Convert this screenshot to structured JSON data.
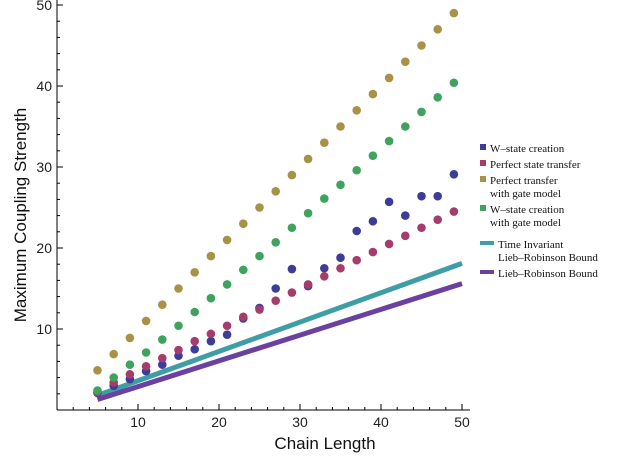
{
  "chart_data": {
    "type": "scatter",
    "xlabel": "Chain Length",
    "ylabel": "Maximum Coupling Strength",
    "xlim": [
      0,
      50
    ],
    "ylim": [
      0,
      50
    ],
    "xticks": [
      10,
      20,
      30,
      40,
      50
    ],
    "yticks": [
      10,
      20,
      30,
      40,
      50
    ],
    "grid": false,
    "legend_position": "right",
    "series": [
      {
        "name": "W–state creation",
        "kind": "points",
        "color": "#3c3c99",
        "x": [
          5,
          7,
          9,
          11,
          13,
          15,
          17,
          19,
          21,
          23,
          25,
          27,
          29,
          31,
          33,
          35,
          37,
          39,
          41,
          43,
          45,
          47,
          49
        ],
        "y": [
          2.1,
          3.0,
          3.8,
          4.8,
          5.6,
          6.7,
          7.5,
          8.5,
          9.3,
          11.3,
          12.6,
          15.0,
          17.4,
          15.3,
          17.5,
          18.8,
          22.1,
          23.3,
          25.7,
          24.0,
          26.4,
          26.4,
          29.1
        ]
      },
      {
        "name": "Perfect state transfer",
        "kind": "points",
        "color": "#a63c6c",
        "x": [
          5,
          7,
          9,
          11,
          13,
          15,
          17,
          19,
          21,
          23,
          25,
          27,
          29,
          31,
          33,
          35,
          37,
          39,
          41,
          43,
          45,
          47,
          49
        ],
        "y": [
          2.2,
          3.4,
          4.4,
          5.4,
          6.4,
          7.4,
          8.5,
          9.4,
          10.4,
          11.5,
          12.4,
          13.5,
          14.5,
          15.5,
          16.5,
          17.5,
          18.5,
          19.5,
          20.5,
          21.5,
          22.5,
          23.5,
          24.5
        ]
      },
      {
        "name": "Perfect transfer\nwith gate model",
        "kind": "points",
        "color": "#a99246",
        "x": [
          5,
          7,
          9,
          11,
          13,
          15,
          17,
          19,
          21,
          23,
          25,
          27,
          29,
          31,
          33,
          35,
          37,
          39,
          41,
          43,
          45,
          47,
          49
        ],
        "y": [
          4.9,
          6.9,
          8.9,
          11.0,
          13.0,
          15.0,
          17.0,
          19.0,
          21.0,
          23.0,
          25.0,
          27.0,
          29.0,
          31.0,
          33.0,
          35.0,
          37.0,
          39.0,
          41.0,
          43.0,
          45.0,
          47.0,
          49.0
        ]
      },
      {
        "name": "W–state creation\nwith gate model",
        "kind": "points",
        "color": "#3fa35e",
        "x": [
          5,
          7,
          9,
          11,
          13,
          15,
          17,
          19,
          21,
          23,
          25,
          27,
          29,
          31,
          33,
          35,
          37,
          39,
          41,
          43,
          45,
          47,
          49
        ],
        "y": [
          2.4,
          4.0,
          5.6,
          7.1,
          8.7,
          10.4,
          12.1,
          13.8,
          15.5,
          17.3,
          19.0,
          20.7,
          22.5,
          24.3,
          26.1,
          27.8,
          29.6,
          31.4,
          33.2,
          35.0,
          36.8,
          38.6,
          40.4
        ]
      },
      {
        "name": "Time Invariant\nLieb–Robinson Bound",
        "kind": "line",
        "color": "#3f9ea5",
        "x": [
          5,
          50
        ],
        "y": [
          1.8,
          18.1
        ]
      },
      {
        "name": "Lieb–Robinson Bound",
        "kind": "line",
        "color": "#6a40a0",
        "x": [
          5,
          50
        ],
        "y": [
          1.3,
          15.6
        ]
      }
    ]
  }
}
